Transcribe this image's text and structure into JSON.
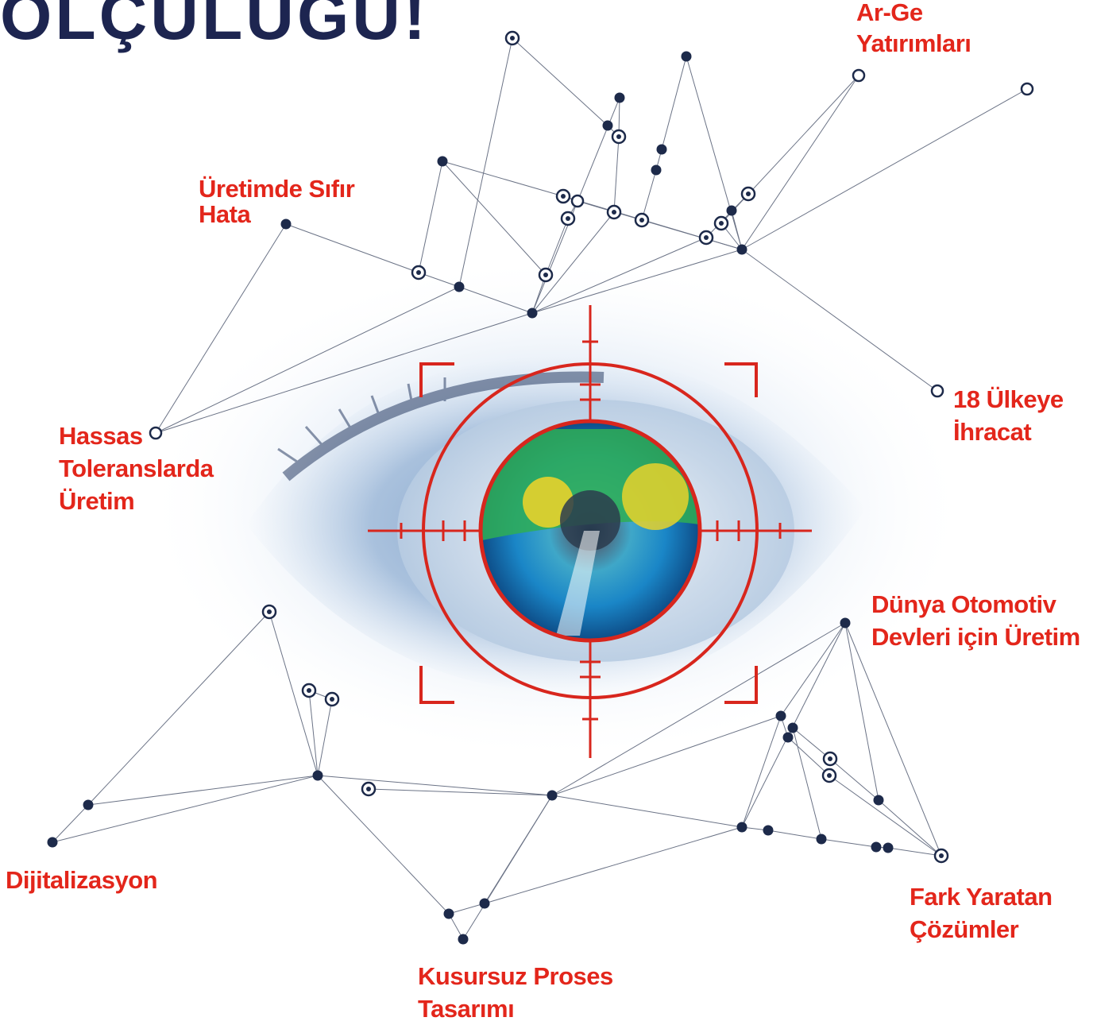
{
  "headline": "ÖLÇÜLÜGÜ!",
  "labels": {
    "arge": [
      "Ar-Ge",
      "Yatırımları"
    ],
    "sifir_hata": [
      "Üretimde Sıfır",
      "Hata"
    ],
    "hassas": [
      "Hassas",
      "Toleranslarda",
      "Üretim"
    ],
    "ihracat": [
      "18 Ülkeye",
      "İhracat"
    ],
    "otomotiv": [
      "Dünya Otomotiv",
      "Devleri için Üretim"
    ],
    "dijital": [
      "Dijitalizasyon"
    ],
    "fark": [
      "Fark Yaratan",
      "Çözümler"
    ],
    "kusursuz": [
      "Kusursuz Proses",
      "Tasarımı"
    ]
  },
  "colors": {
    "label": "#e3261b",
    "headline": "#1d2550",
    "node": "#1d2a4a",
    "line": "#6b7386",
    "reticle": "#d8261d",
    "iris_outer": "#1d7fc0",
    "iris_green": "#2fae55",
    "iris_yellow": "#e8d22b"
  },
  "icons": [
    "network-node-icon",
    "target-reticle-icon",
    "eye-illustration"
  ]
}
